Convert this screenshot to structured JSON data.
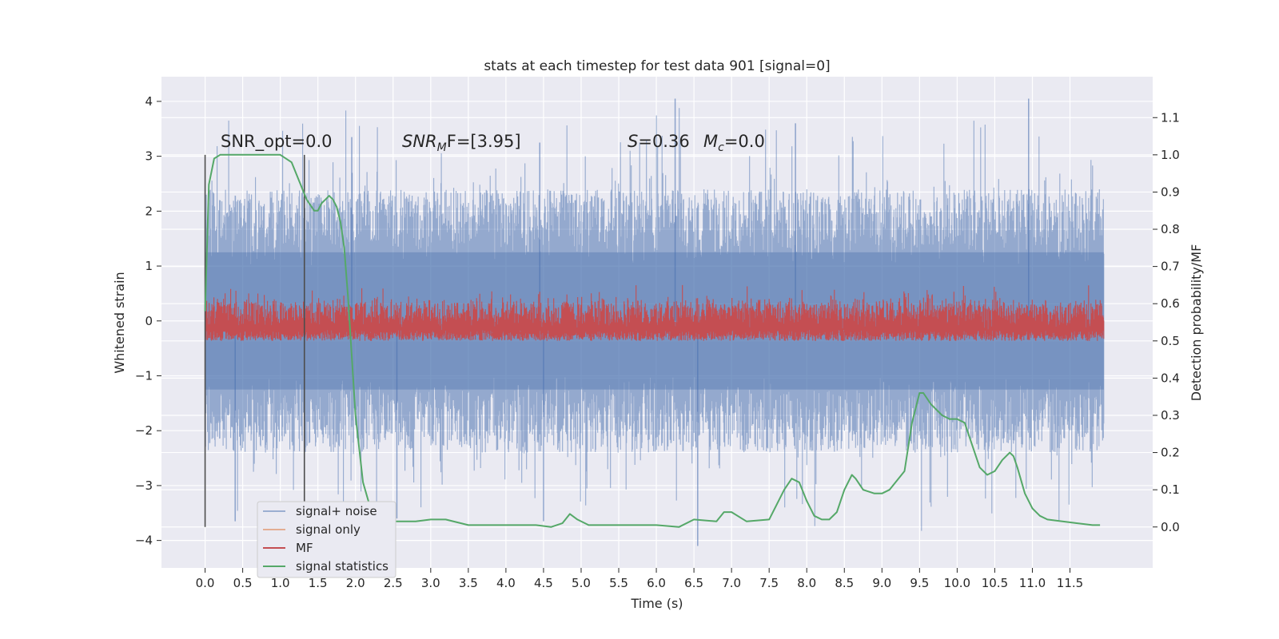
{
  "chart_data": {
    "type": "line",
    "title": "stats at each timestep for test data 901 [signal=0]",
    "xlabel": "Time (s)",
    "ylabel": "Whitened strain",
    "y2label": "Detection probability/MF",
    "xlim": [
      -0.58,
      12.6
    ],
    "ylim": [
      -4.5,
      4.45
    ],
    "y2lim": [
      -0.11,
      1.21
    ],
    "xticks": [
      "0.0",
      "0.5",
      "1.0",
      "1.5",
      "2.0",
      "2.5",
      "3.0",
      "3.5",
      "4.0",
      "4.5",
      "5.0",
      "5.5",
      "6.0",
      "6.5",
      "7.0",
      "7.5",
      "8.0",
      "8.5",
      "9.0",
      "9.5",
      "10.0",
      "10.5",
      "11.0",
      "11.5"
    ],
    "yticks": [
      "4",
      "3",
      "2",
      "1",
      "0",
      "−1",
      "−2",
      "−3",
      "−4"
    ],
    "y2ticks": [
      "1.1",
      "1.0",
      "0.9",
      "0.8",
      "0.7",
      "0.6",
      "0.5",
      "0.4",
      "0.3",
      "0.2",
      "0.1",
      "0.0"
    ],
    "grid": true,
    "legend_position": "lower-left",
    "annotations": {
      "snr_opt": "SNR_opt=0.0",
      "snr_mf_main": "SNR",
      "snr_mf_sub": "M",
      "snr_mf_rest": "F=[3.95]",
      "s_main": "S",
      "s_rest": "=0.36",
      "mc_main": "M",
      "mc_sub": "c",
      "mc_rest": "=0.0"
    },
    "vlines_x": [
      0.0,
      1.32
    ],
    "series": [
      {
        "name": "signal+ noise",
        "color": "#4c72b0",
        "envelope": {
          "x_range": [
            0.0,
            11.95
          ],
          "typical_upper": 2.0,
          "typical_lower": -2.0,
          "peak_upper": 4.05,
          "peak_lower": -4.1
        }
      },
      {
        "name": "signal only",
        "color": "#dd8452",
        "values": []
      },
      {
        "name": "MF",
        "color": "#c44e52",
        "axis": "right",
        "envelope": {
          "x_range": [
            0.0,
            11.95
          ],
          "typical_lower": 0.5,
          "typical_upper": 0.6,
          "peak_upper": 0.65
        }
      },
      {
        "name": "signal statistics",
        "color": "#55a868",
        "axis": "right",
        "x": [
          0.0,
          0.05,
          0.12,
          0.2,
          0.4,
          0.8,
          1.0,
          1.15,
          1.25,
          1.35,
          1.45,
          1.5,
          1.55,
          1.6,
          1.65,
          1.7,
          1.75,
          1.8,
          1.85,
          1.9,
          1.95,
          2.0,
          2.1,
          2.2,
          2.3,
          2.5,
          2.8,
          3.0,
          3.2,
          3.5,
          4.0,
          4.4,
          4.6,
          4.75,
          4.85,
          4.95,
          5.1,
          5.5,
          6.0,
          6.3,
          6.5,
          6.8,
          6.9,
          7.0,
          7.2,
          7.5,
          7.6,
          7.7,
          7.8,
          7.9,
          8.0,
          8.1,
          8.2,
          8.3,
          8.4,
          8.5,
          8.6,
          8.65,
          8.75,
          8.9,
          9.0,
          9.1,
          9.3,
          9.4,
          9.5,
          9.55,
          9.65,
          9.8,
          9.9,
          10.0,
          10.1,
          10.2,
          10.3,
          10.4,
          10.5,
          10.6,
          10.7,
          10.75,
          10.8,
          10.9,
          11.0,
          11.1,
          11.2,
          11.4,
          11.6,
          11.8,
          11.9
        ],
        "values": [
          0.58,
          0.92,
          0.99,
          1.0,
          1.0,
          1.0,
          1.0,
          0.98,
          0.93,
          0.88,
          0.85,
          0.85,
          0.87,
          0.88,
          0.89,
          0.88,
          0.86,
          0.82,
          0.75,
          0.62,
          0.46,
          0.3,
          0.12,
          0.05,
          0.03,
          0.015,
          0.015,
          0.02,
          0.02,
          0.005,
          0.005,
          0.005,
          0.0,
          0.01,
          0.035,
          0.02,
          0.005,
          0.005,
          0.005,
          0.0,
          0.02,
          0.015,
          0.04,
          0.04,
          0.015,
          0.02,
          0.06,
          0.1,
          0.13,
          0.12,
          0.07,
          0.03,
          0.02,
          0.02,
          0.04,
          0.1,
          0.14,
          0.13,
          0.1,
          0.09,
          0.09,
          0.1,
          0.15,
          0.28,
          0.36,
          0.36,
          0.33,
          0.3,
          0.29,
          0.29,
          0.28,
          0.22,
          0.16,
          0.14,
          0.15,
          0.18,
          0.2,
          0.19,
          0.16,
          0.09,
          0.05,
          0.03,
          0.02,
          0.015,
          0.01,
          0.005,
          0.005
        ]
      }
    ]
  }
}
